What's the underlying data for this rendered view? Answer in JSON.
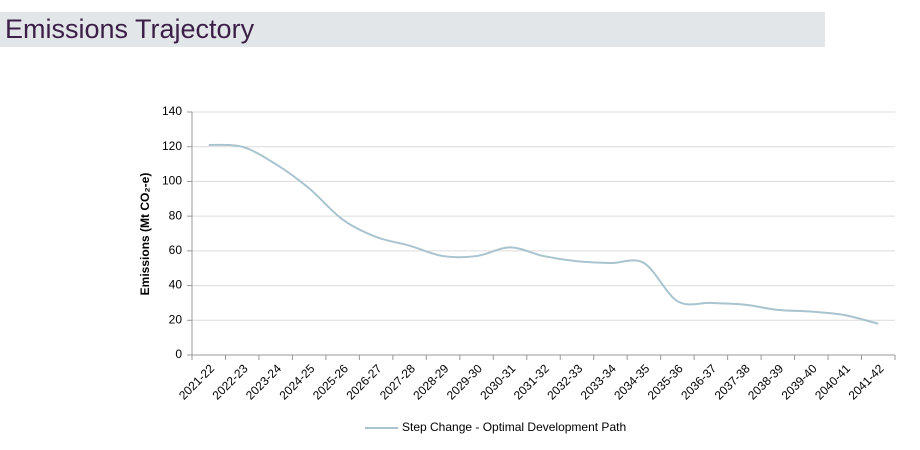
{
  "chart_data": {
    "type": "line",
    "title": "Emissions Trajectory",
    "ylabel": "Emissions (Mt CO₂-e)",
    "categories": [
      "2021-22",
      "2022-23",
      "2023-24",
      "2024-25",
      "2025-26",
      "2026-27",
      "2027-28",
      "2028-29",
      "2029-30",
      "2030-31",
      "2031-32",
      "2032-33",
      "2033-34",
      "2034-35",
      "2035-36",
      "2036-37",
      "2037-38",
      "2038-39",
      "2039-40",
      "2040-41",
      "2041-42"
    ],
    "series": [
      {
        "name": "Step Change - Optimal Development Path",
        "color": "#a9c4cf",
        "values": [
          121,
          120,
          110,
          96,
          78,
          68,
          63,
          57,
          57,
          62,
          57,
          54,
          53,
          53,
          31,
          30,
          29,
          26,
          25,
          23,
          18
        ]
      }
    ],
    "ylim": [
      0,
      140
    ],
    "yticks": [
      0,
      20,
      40,
      60,
      80,
      100,
      120,
      140
    ],
    "grid": true,
    "legend": "bottom"
  }
}
